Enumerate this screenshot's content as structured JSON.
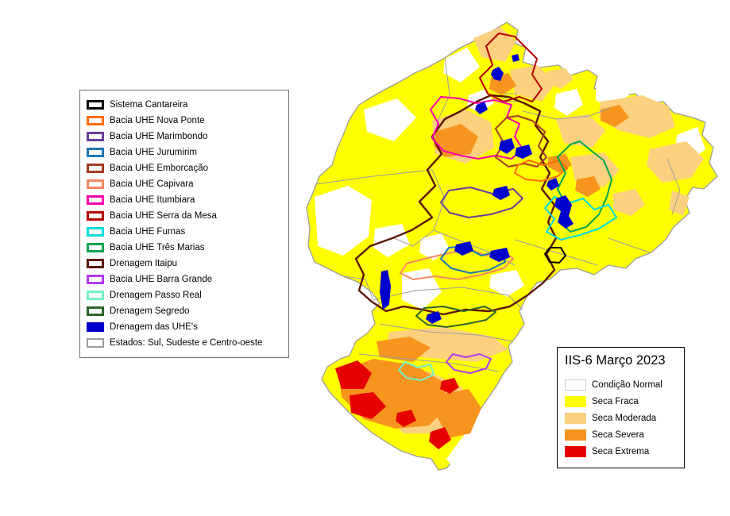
{
  "basins_legend": {
    "items": [
      {
        "key": "cantareira",
        "label": "Sistema Cantareira",
        "color": "#000000",
        "style": "outline"
      },
      {
        "key": "nova-ponte",
        "label": "Bacia UHE Nova Ponte",
        "color": "#FF6D00",
        "style": "outline"
      },
      {
        "key": "marimbondo",
        "label": "Bacia UHE Marimbondo",
        "color": "#6A3D9A",
        "style": "outline"
      },
      {
        "key": "jurumirim",
        "label": "Bacia UHE Jurumirim",
        "color": "#1F78B4",
        "style": "outline"
      },
      {
        "key": "emborcacao",
        "label": "Bacia UHE Emborcação",
        "color": "#A33B20",
        "style": "outline"
      },
      {
        "key": "capivara",
        "label": "Bacia UHE Capivara",
        "color": "#F58860",
        "style": "outline"
      },
      {
        "key": "itumbiara",
        "label": "Bacia UHE Itumbiara",
        "color": "#FF00AA",
        "style": "outline"
      },
      {
        "key": "serra-da-mesa",
        "label": "Bacia UHE Serra da Mesa",
        "color": "#B30000",
        "style": "outline"
      },
      {
        "key": "furnas",
        "label": "Bacia UHE Furnas",
        "color": "#00DDDD",
        "style": "outline"
      },
      {
        "key": "tres-marias",
        "label": "Bacia UHE Três Marias",
        "color": "#00A550",
        "style": "outline"
      },
      {
        "key": "itaipu",
        "label": "Drenagem Itaipu",
        "color": "#5C1606",
        "style": "outline"
      },
      {
        "key": "barra-grande",
        "label": "Bacia UHE Barra Grande",
        "color": "#B23AEE",
        "style": "outline"
      },
      {
        "key": "passo-real",
        "label": "Drenagem Passo Real",
        "color": "#76EEC6",
        "style": "outline"
      },
      {
        "key": "segredo",
        "label": "Drenagem Segredo",
        "color": "#2D662D",
        "style": "outline"
      },
      {
        "key": "uhes",
        "label": "Drenagem das UHE's",
        "color": "#0000CD",
        "style": "fill"
      },
      {
        "key": "estados",
        "label": "Estados: Sul, Sudeste e Centro-oeste",
        "color": "#9C9C9C",
        "style": "outline-thin"
      }
    ]
  },
  "drought_legend": {
    "title": "IIS-6 Março 2023",
    "items": [
      {
        "key": "normal",
        "label": "Condição Normal",
        "color": "#FFFFFF"
      },
      {
        "key": "fraca",
        "label": "Seca Fraca",
        "color": "#FFFF00"
      },
      {
        "key": "moderada",
        "label": "Seca Moderada",
        "color": "#FBD07E"
      },
      {
        "key": "severa",
        "label": "Seca Severa",
        "color": "#F7941E"
      },
      {
        "key": "extrema",
        "label": "Seca Extrema",
        "color": "#E60000"
      }
    ]
  }
}
